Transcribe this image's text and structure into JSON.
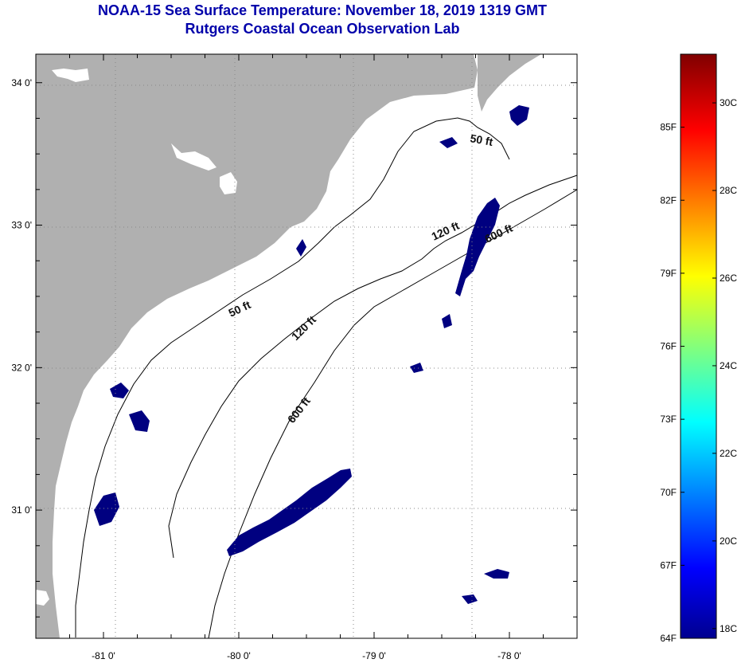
{
  "title": {
    "line1": "NOAA-15 Sea Surface Temperature:  November 18, 2019 1319 GMT",
    "line2": "Rutgers Coastal Ocean Observation Lab"
  },
  "map": {
    "lon_range": [
      -81.5,
      -77.5
    ],
    "lat_range": [
      30.1,
      34.2
    ],
    "lon_ticks": [
      {
        "value": -81,
        "label": "-81 0'"
      },
      {
        "value": -80,
        "label": "-80 0'"
      },
      {
        "value": -79,
        "label": "-79 0'"
      },
      {
        "value": -78,
        "label": "-78 0'"
      }
    ],
    "lat_ticks": [
      {
        "value": 34,
        "label": "34 0'"
      },
      {
        "value": 33,
        "label": "33 0'"
      },
      {
        "value": 32,
        "label": "32 0'"
      },
      {
        "value": 31,
        "label": "31 0'"
      }
    ],
    "contour_labels": [
      "50 ft",
      "120 ft",
      "600 ft",
      "50 ft",
      "120 ft",
      "600 ft"
    ],
    "colors": {
      "land": "#b0b0b0",
      "water": "#ffffff",
      "cold_patch": "#000080",
      "grid": "#888888"
    }
  },
  "colorbar": {
    "min_f": 64,
    "max_f": 88,
    "fahrenheit_labels": [
      "85F",
      "82F",
      "79F",
      "76F",
      "73F",
      "70F",
      "67F",
      "64F"
    ],
    "celsius_labels": [
      "30C",
      "28C",
      "26C",
      "24C",
      "22C",
      "20C",
      "18C"
    ]
  }
}
